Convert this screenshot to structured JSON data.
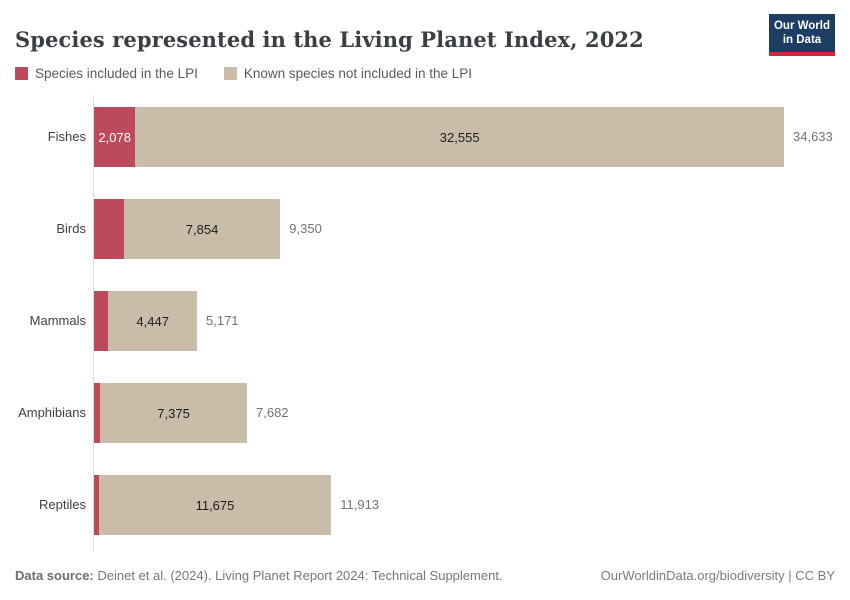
{
  "header": {
    "title": "Species represented in the Living Planet Index, 2022",
    "logo_line1": "Our World",
    "logo_line2": "in Data",
    "logo_bg_color": "#1d3d63",
    "logo_strip_color": "#d7263d"
  },
  "legend": [
    {
      "label": "Species included in the LPI",
      "color": "#bd4a5c"
    },
    {
      "label": "Known species not included in the LPI",
      "color": "#c9bca9"
    }
  ],
  "chart_data": {
    "type": "bar",
    "orientation": "horizontal",
    "stacked": true,
    "grid": false,
    "title": "Species represented in the Living Planet Index, 2022",
    "xlim": [
      0,
      34633
    ],
    "categories": [
      "Fishes",
      "Birds",
      "Mammals",
      "Amphibians",
      "Reptiles"
    ],
    "series": [
      {
        "name": "Species included in the LPI",
        "color": "#bd4a5c",
        "values": [
          2078,
          1496,
          724,
          307,
          238
        ]
      },
      {
        "name": "Known species not included in the LPI",
        "color": "#c9bca9",
        "values": [
          32555,
          7854,
          4447,
          7375,
          11675
        ]
      }
    ],
    "totals": [
      34633,
      9350,
      5171,
      7682,
      11913
    ],
    "rows": [
      {
        "category": "Fishes",
        "included": 2078,
        "included_label": "2,078",
        "known": 32555,
        "known_label": "32,555",
        "total": 34633,
        "total_label": "34,633"
      },
      {
        "category": "Birds",
        "included": 1496,
        "included_label": "",
        "known": 7854,
        "known_label": "7,854",
        "total": 9350,
        "total_label": "9,350"
      },
      {
        "category": "Mammals",
        "included": 724,
        "included_label": "",
        "known": 4447,
        "known_label": "4,447",
        "total": 5171,
        "total_label": "5,171"
      },
      {
        "category": "Amphibians",
        "included": 307,
        "included_label": "",
        "known": 7375,
        "known_label": "7,375",
        "total": 7682,
        "total_label": "7,682"
      },
      {
        "category": "Reptiles",
        "included": 238,
        "included_label": "",
        "known": 11675,
        "known_label": "11,675",
        "total": 11913,
        "total_label": "11,913"
      }
    ]
  },
  "footer": {
    "source_label": "Data source:",
    "source_text": " Deinet et al. (2024). Living Planet Report 2024: Technical Supplement.",
    "right_text": "OurWorldinData.org/biodiversity | CC BY"
  }
}
